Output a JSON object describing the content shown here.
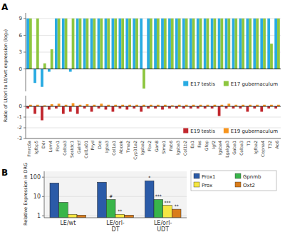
{
  "chart_data": [
    {
      "type": "bar",
      "title": "A",
      "ylabel": "Ratio of Lt/orl to Lt/wrt expression (log₂)",
      "categories": [
        "Fmrc6a",
        "Igfbp5",
        "Ddr",
        "Lsm4",
        "Fbn1",
        "Colba3",
        "Sostdc1",
        "Galntf",
        "Col1a01",
        "Pryd",
        "Dce",
        "Igba3",
        "Col1a1",
        "Abcek",
        "Tma2",
        "Cyp31a2",
        "Igsba2",
        "Fbx2",
        "Gan8",
        "Slme1",
        "Fab6",
        "Igsba3",
        "Col1b2",
        "Es1",
        "Fas",
        "Gfop",
        "Igf2",
        "Igsba4",
        "Lgalga3",
        "Gaba1",
        "Colba3",
        "T1",
        "Igfba2",
        "Copna4",
        "T32",
        "Ao6"
      ],
      "series": [
        {
          "name": "E17 testis",
          "color": "#29ABE2",
          "values": [
            9,
            -2.5,
            -3.2,
            -0.5,
            9,
            9,
            -0.5,
            9,
            9,
            9,
            9,
            9,
            9,
            9,
            9,
            9,
            9,
            9,
            9,
            9,
            9,
            9,
            9,
            9,
            9,
            9,
            9,
            9,
            9,
            9,
            9,
            9,
            9,
            9,
            9,
            9
          ]
        },
        {
          "name": "E17 gubernaculum",
          "color": "#8DC63F",
          "values": [
            9,
            9,
            1.0,
            3.5,
            9,
            9,
            9,
            9,
            9,
            9,
            9,
            9,
            9,
            9,
            9,
            9,
            -3.5,
            9,
            9,
            9,
            9,
            9,
            9,
            9,
            9,
            9,
            9,
            9,
            9,
            9,
            9,
            9,
            9,
            9,
            4.5,
            9
          ]
        }
      ],
      "ylim": [
        -4,
        10
      ],
      "yticks": [
        0,
        3,
        6,
        9
      ],
      "grid": true,
      "legend": "lower right",
      "tick_labels": "y"
    },
    {
      "type": "bar",
      "categories": [
        "Fmrc6a",
        "Igfbp5",
        "Ddr",
        "Lsm4",
        "Fbn1",
        "Colba3",
        "Sostdc1",
        "Galntf",
        "Col1a01",
        "Pryd",
        "Dce",
        "Igba3",
        "Col1a1",
        "Abcek",
        "Tma2",
        "Cyp31a2",
        "Igsba2",
        "Fbx2",
        "Gan8",
        "Slme1",
        "Fab6",
        "Igsba3",
        "Col1b2",
        "Es1",
        "Fas",
        "Gfop",
        "Igf2",
        "Igsba4",
        "Lgalga3",
        "Gaba1",
        "Colba3",
        "T1",
        "Igfba2",
        "Copna4",
        "T32",
        "Ao6"
      ],
      "series": [
        {
          "name": "E19 testis",
          "color": "#C1272D",
          "values": [
            -0.2,
            -0.7,
            -1.3,
            -0.3,
            -0.2,
            -0.7,
            -0.5,
            -0.7,
            -0.2,
            -0.5,
            -0.2,
            -0.3,
            -0.5,
            -0.2,
            -0.3,
            -0.2,
            -0.5,
            -0.2,
            -0.2,
            -0.3,
            -0.2,
            -0.2,
            -0.2,
            -0.2,
            -0.2,
            -0.2,
            -0.2,
            -0.9,
            -0.2,
            -0.2,
            -0.2,
            -0.5,
            -0.2,
            -0.5,
            -0.2,
            -0.2
          ]
        },
        {
          "name": "E19 gubernaculum",
          "color": "#F7941D",
          "values": [
            0.15,
            0.15,
            0.1,
            0.2,
            0.25,
            0.15,
            0.3,
            0.15,
            0.2,
            0.15,
            0.25,
            0.15,
            0.15,
            0.15,
            0.15,
            0.15,
            0.15,
            0.15,
            0.15,
            0.15,
            0.1,
            0.15,
            0.15,
            0.15,
            0.15,
            0.15,
            0.15,
            0.15,
            0.25,
            0.15,
            0.15,
            0.15,
            0.15,
            0.15,
            0.15,
            0.15
          ]
        }
      ],
      "ylim": [
        -3,
        1
      ],
      "yticks": [
        -3,
        -2,
        -1,
        0
      ],
      "grid": true,
      "legend": "lower right"
    },
    {
      "type": "bar",
      "title": "B",
      "ylabel": "Relative Expression in DRG",
      "categories": [
        "LE/wt",
        "LE/orl-\nDT",
        "LE/orl-\nUDT"
      ],
      "series": [
        {
          "name": "Prox1",
          "color": "#2B5BA8",
          "values": [
            50,
            55,
            65
          ]
        },
        {
          "name": "Gpnmb",
          "color": "#39B54A",
          "values": [
            5,
            7,
            7
          ]
        },
        {
          "name": "Prox",
          "color": "#F5E642",
          "values": [
            1.2,
            1.2,
            3.5
          ]
        },
        {
          "name": "Oxt2",
          "color": "#D97C1A",
          "values": [
            1.1,
            1.1,
            2.2
          ]
        }
      ],
      "log": "y",
      "ylim": [
        0.8,
        200
      ],
      "yticks": [
        1,
        10,
        100
      ],
      "grid": true,
      "legend": "upper right",
      "annotations": [
        {
          "text": "*",
          "series": "Prox1",
          "category": "LE/orl-\nUDT"
        },
        {
          "text": "#",
          "series": "Gpnmb",
          "category": "LE/orl-\nDT"
        },
        {
          "text": "***",
          "series": "Gpnmb",
          "category": "LE/orl-\nUDT"
        },
        {
          "text": "**",
          "series": "Prox",
          "category": "LE/orl-\nDT"
        },
        {
          "text": "***",
          "series": "Prox",
          "category": "LE/orl-\nUDT"
        },
        {
          "text": "**",
          "series": "Oxt2",
          "category": "LE/orl-\nUDT"
        }
      ]
    }
  ]
}
